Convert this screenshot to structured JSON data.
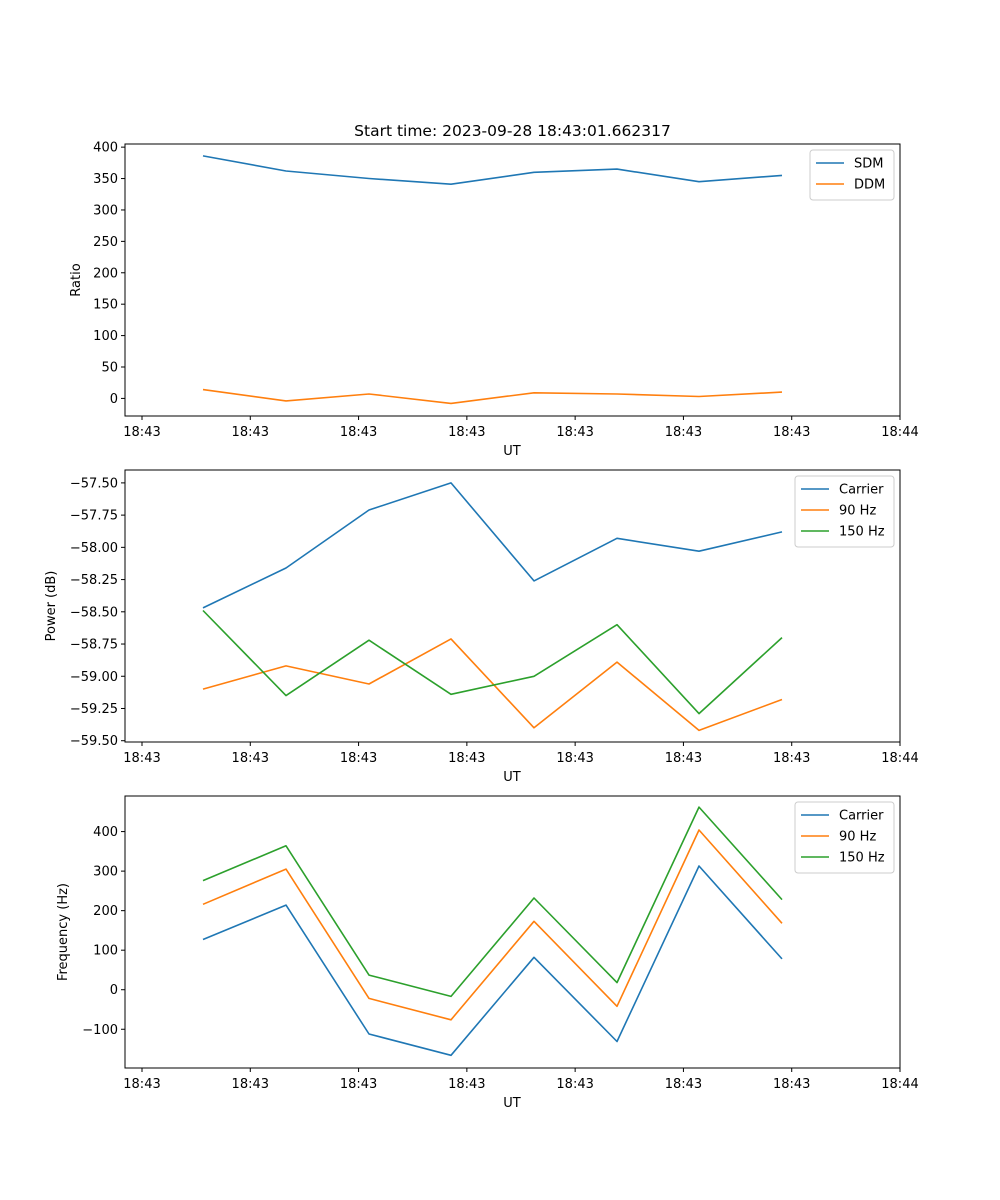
{
  "title": "Start time: 2023-09-28 18:43:01.662317",
  "chart_data": [
    {
      "type": "line",
      "xlabel": "UT",
      "ylabel": "Ratio",
      "x_tick_labels": [
        "18:43",
        "18:43",
        "18:43",
        "18:43",
        "18:43",
        "18:43",
        "18:43",
        "18:44"
      ],
      "xlim": [
        0,
        9.1
      ],
      "x_ticks": [
        0.2,
        1.7,
        3.2,
        4.7,
        6.2,
        7.7,
        9.2
      ],
      "ylim": [
        -28,
        405
      ],
      "y_ticks": [
        0,
        50,
        100,
        150,
        200,
        250,
        300,
        350,
        400
      ],
      "x": [
        0.95,
        1.95,
        2.95,
        3.95,
        4.95,
        5.95,
        6.95,
        7.95
      ],
      "series": [
        {
          "name": "SDM",
          "color": "#1f77b4",
          "values": [
            386,
            362,
            350,
            341,
            360,
            365,
            345,
            355
          ]
        },
        {
          "name": "DDM",
          "color": "#ff7f0e",
          "values": [
            14,
            -4,
            7,
            -8,
            9,
            7,
            3,
            10
          ]
        }
      ],
      "legend": "top-right"
    },
    {
      "type": "line",
      "xlabel": "UT",
      "ylabel": "Power (dB)",
      "x_tick_labels": [
        "18:43",
        "18:43",
        "18:43",
        "18:43",
        "18:43",
        "18:43",
        "18:43",
        "18:44"
      ],
      "ylim": [
        -59.51,
        -57.4
      ],
      "y_ticks": [
        -59.5,
        -59.25,
        -59.0,
        -58.75,
        -58.5,
        -58.25,
        -58.0,
        -57.75,
        -57.5
      ],
      "y_tick_labels": [
        "−59.50",
        "−59.25",
        "−59.00",
        "−58.75",
        "−58.50",
        "−58.25",
        "−58.00",
        "−57.75",
        "−57.50"
      ],
      "x": [
        0.95,
        1.95,
        2.95,
        3.95,
        4.95,
        5.95,
        6.95,
        7.95
      ],
      "series": [
        {
          "name": "Carrier",
          "color": "#1f77b4",
          "values": [
            -58.47,
            -58.16,
            -57.71,
            -57.5,
            -58.26,
            -57.93,
            -58.03,
            -57.88
          ]
        },
        {
          "name": "90 Hz",
          "color": "#ff7f0e",
          "values": [
            -59.1,
            -58.92,
            -59.06,
            -58.71,
            -59.4,
            -58.89,
            -59.42,
            -59.18
          ]
        },
        {
          "name": "150 Hz",
          "color": "#2ca02c",
          "values": [
            -58.49,
            -59.15,
            -58.72,
            -59.14,
            -59.0,
            -58.6,
            -59.29,
            -58.7
          ]
        }
      ],
      "legend": "top-right"
    },
    {
      "type": "line",
      "xlabel": "UT",
      "ylabel": "Frequency (Hz)",
      "x_tick_labels": [
        "18:43",
        "18:43",
        "18:43",
        "18:43",
        "18:43",
        "18:43",
        "18:43",
        "18:44"
      ],
      "ylim": [
        -198,
        490
      ],
      "y_ticks": [
        -100,
        0,
        100,
        200,
        300,
        400
      ],
      "y_tick_labels": [
        "−100",
        "0",
        "100",
        "200",
        "300",
        "400"
      ],
      "x": [
        0.95,
        1.95,
        2.95,
        3.95,
        4.95,
        5.95,
        6.95,
        7.95
      ],
      "series": [
        {
          "name": "Carrier",
          "color": "#1f77b4",
          "values": [
            127,
            214,
            -112,
            -166,
            82,
            -131,
            313,
            78
          ]
        },
        {
          "name": "90 Hz",
          "color": "#ff7f0e",
          "values": [
            216,
            305,
            -22,
            -76,
            173,
            -42,
            404,
            168
          ]
        },
        {
          "name": "150 Hz",
          "color": "#2ca02c",
          "values": [
            276,
            364,
            37,
            -17,
            232,
            18,
            462,
            228
          ]
        }
      ],
      "legend": "top-right"
    }
  ]
}
